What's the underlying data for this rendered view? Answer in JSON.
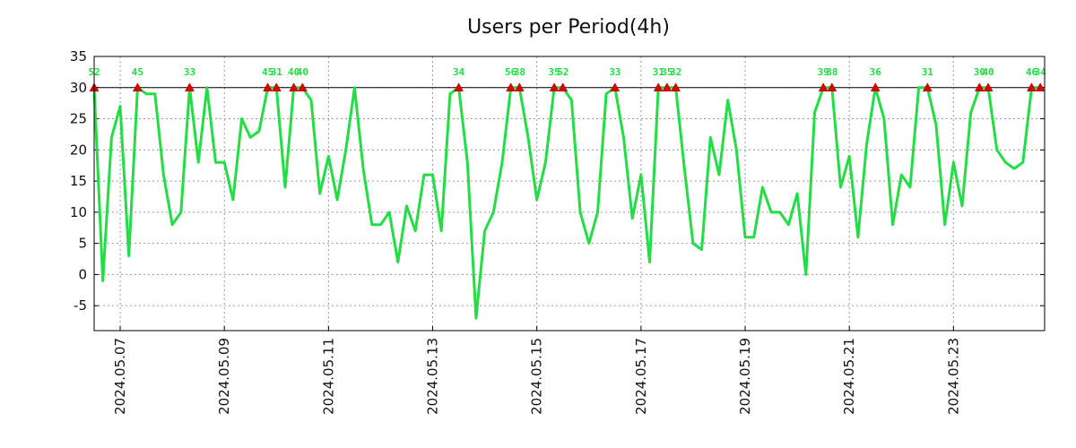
{
  "chart_data": {
    "type": "line",
    "title": "Users per Period(4h)",
    "xlabel": "",
    "ylabel": "",
    "ylim": [
      -9,
      35
    ],
    "yticks": [
      -5,
      0,
      5,
      10,
      15,
      20,
      25,
      30,
      35
    ],
    "x_date_ticks": [
      "2024.05.07",
      "2024.05.09",
      "2024.05.11",
      "2024.05.13",
      "2024.05.15",
      "2024.05.17",
      "2024.05.19",
      "2024.05.21",
      "2024.05.23"
    ],
    "x_tick_positions_days": [
      0.5,
      2.5,
      4.5,
      6.5,
      8.5,
      10.5,
      12.5,
      14.5,
      16.5
    ],
    "x_range_days": [
      0,
      18.25
    ],
    "threshold": 30,
    "colors": {
      "line": "#22dd44",
      "marker": "#dd0000",
      "label": "#22dd44",
      "threshold": "#000000"
    },
    "series": [
      {
        "name": "users",
        "values": [
          30,
          -1,
          22,
          27,
          3,
          30,
          29,
          29,
          16,
          8,
          10,
          30,
          18,
          30,
          18,
          18,
          12,
          25,
          22,
          23,
          30,
          30,
          14,
          30,
          30,
          28,
          13,
          19,
          12,
          20,
          30,
          17,
          8,
          8,
          10,
          2,
          11,
          7,
          16,
          16,
          7,
          29,
          30,
          18,
          -7,
          7,
          10,
          18,
          30,
          30,
          22,
          12,
          18,
          30,
          30,
          28,
          10,
          5,
          10,
          29,
          30,
          22,
          9,
          16,
          2,
          30,
          30,
          30,
          17,
          5,
          4,
          22,
          16,
          28,
          20,
          6,
          6,
          14,
          10,
          10,
          8,
          13,
          0,
          26,
          30,
          30,
          14,
          19,
          6,
          21,
          30,
          25,
          8,
          16,
          14,
          30,
          30,
          24,
          8,
          18,
          11,
          26,
          30,
          30,
          20,
          18,
          17,
          18,
          30,
          30
        ]
      }
    ],
    "peak_markers": [
      {
        "index": 0,
        "label": "52"
      },
      {
        "index": 5,
        "label": "45"
      },
      {
        "index": 11,
        "label": "33"
      },
      {
        "index": 20,
        "label": "45"
      },
      {
        "index": 21,
        "label": "31"
      },
      {
        "index": 23,
        "label": "40"
      },
      {
        "index": 24,
        "label": "40"
      },
      {
        "index": 42,
        "label": "34"
      },
      {
        "index": 48,
        "label": "56"
      },
      {
        "index": 49,
        "label": "38"
      },
      {
        "index": 53,
        "label": "35"
      },
      {
        "index": 54,
        "label": "52"
      },
      {
        "index": 60,
        "label": "33"
      },
      {
        "index": 65,
        "label": "31"
      },
      {
        "index": 66,
        "label": "35"
      },
      {
        "index": 67,
        "label": "32"
      },
      {
        "index": 84,
        "label": "39"
      },
      {
        "index": 85,
        "label": "38"
      },
      {
        "index": 90,
        "label": "36"
      },
      {
        "index": 96,
        "label": "31"
      },
      {
        "index": 102,
        "label": "30"
      },
      {
        "index": 103,
        "label": "40"
      },
      {
        "index": 108,
        "label": "46"
      },
      {
        "index": 109,
        "label": "34"
      }
    ]
  }
}
